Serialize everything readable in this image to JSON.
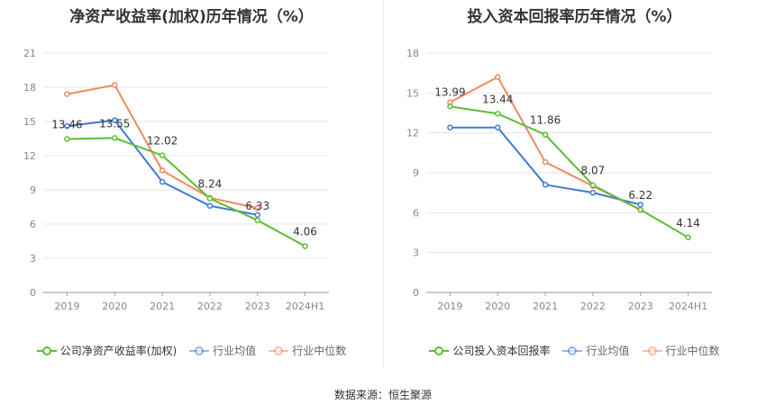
{
  "source": "数据来源：恒生聚源",
  "colors": {
    "company": "#5dbd33",
    "avg": "#3f7ad6",
    "median": "#f08a5d",
    "grid": "#e6e6e6",
    "axis": "#999999"
  },
  "chart_data": [
    {
      "type": "line",
      "title": "净资产收益率(加权)历年情况（%）",
      "categories": [
        "2019",
        "2020",
        "2021",
        "2022",
        "2023",
        "2024H1"
      ],
      "yticks": [
        "0",
        "3",
        "6",
        "9",
        "12",
        "15",
        "18",
        "21"
      ],
      "ylim": [
        0,
        21
      ],
      "series": [
        {
          "name": "公司净资产收益率(加权)",
          "key": "company",
          "values": [
            13.46,
            13.55,
            12.02,
            8.24,
            6.33,
            4.06
          ],
          "labels": [
            "13.46",
            "13.55",
            "12.02",
            "8.24",
            "6.33",
            "4.06"
          ]
        },
        {
          "name": "行业均值",
          "key": "avg",
          "values": [
            14.6,
            15.1,
            9.7,
            7.6,
            6.8,
            null
          ]
        },
        {
          "name": "行业中位数",
          "key": "median",
          "values": [
            17.4,
            18.2,
            10.7,
            8.3,
            7.4,
            null
          ]
        }
      ]
    },
    {
      "type": "line",
      "title": "投入资本回报率历年情况（%）",
      "categories": [
        "2019",
        "2020",
        "2021",
        "2022",
        "2023",
        "2024H1"
      ],
      "yticks": [
        "0",
        "3",
        "6",
        "9",
        "12",
        "15",
        "18"
      ],
      "ylim": [
        0,
        18
      ],
      "series": [
        {
          "name": "公司投入资本回报率",
          "key": "company",
          "values": [
            13.99,
            13.44,
            11.86,
            8.07,
            6.22,
            4.14
          ],
          "labels": [
            "13.99",
            "13.44",
            "11.86",
            "8.07",
            "6.22",
            "4.14"
          ]
        },
        {
          "name": "行业均值",
          "key": "avg",
          "values": [
            12.4,
            12.4,
            8.1,
            7.5,
            6.6,
            null
          ]
        },
        {
          "name": "行业中位数",
          "key": "median",
          "values": [
            14.3,
            16.2,
            9.8,
            8.0,
            6.2,
            null
          ]
        }
      ]
    }
  ]
}
